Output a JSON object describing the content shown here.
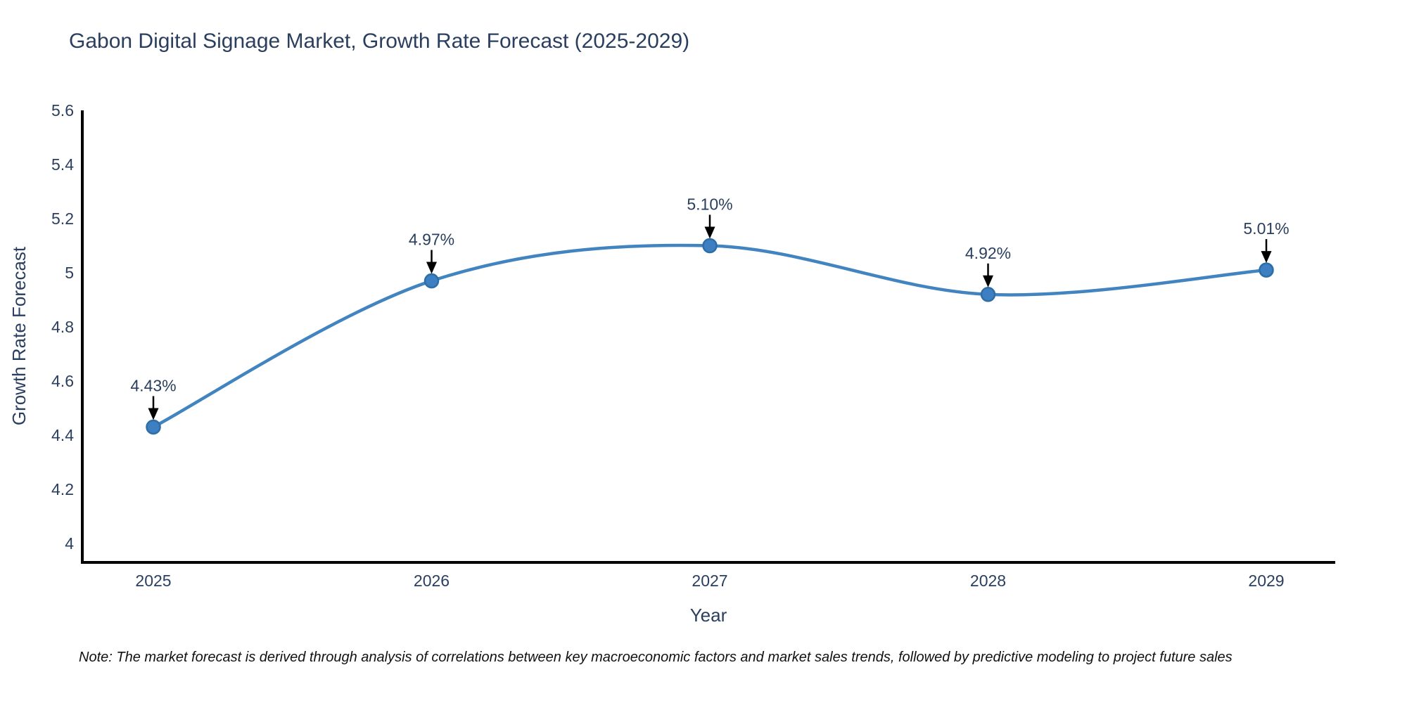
{
  "title": "Gabon Digital Signage Market, Growth Rate Forecast (2025-2029)",
  "note": "Note: The market forecast is derived through analysis of correlations between key macroeconomic factors and market sales trends, followed by predictive modeling to project future sales",
  "chart_data": {
    "type": "line",
    "line_shape": "spline",
    "x": [
      2025,
      2026,
      2027,
      2028,
      2029
    ],
    "values": [
      4.43,
      4.97,
      5.1,
      4.92,
      5.01
    ],
    "point_labels": [
      "4.43%",
      "4.97%",
      "5.10%",
      "4.92%",
      "5.01%"
    ],
    "title": "Gabon Digital Signage Market, Growth Rate Forecast (2025-2029)",
    "xlabel": "Year",
    "ylabel": "Growth Rate Forecast",
    "ylim": [
      4,
      5.6
    ],
    "yticks": [
      4,
      4.2,
      4.4,
      4.6,
      4.8,
      5,
      5.2,
      5.4,
      5.6
    ],
    "xticks": [
      "2025",
      "2026",
      "2027",
      "2028",
      "2029"
    ],
    "grid": false,
    "legend": "none",
    "annotations_have_arrows": true,
    "colors": {
      "line": "#4184c0",
      "marker_fill": "#3d7fc0",
      "marker_edge": "#2d6da8",
      "axis_line": "#000000",
      "text": "#2a3f5f",
      "arrow": "#000000",
      "note": "#111111",
      "background": "#ffffff"
    }
  }
}
